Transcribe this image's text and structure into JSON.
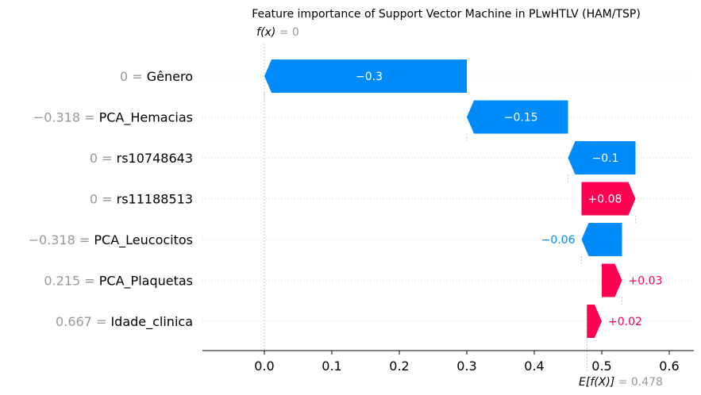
{
  "chart_data": {
    "type": "waterfall",
    "title": "Feature importance of Support Vector Machine in PLwHTLV (HAM/TSP)",
    "xlim": [
      -0.09,
      0.635
    ],
    "xticks": [
      "0.0",
      "0.1",
      "0.2",
      "0.3",
      "0.4",
      "0.5",
      "0.6"
    ],
    "xtick_values": [
      0.0,
      0.1,
      0.2,
      0.3,
      0.4,
      0.5,
      0.6
    ],
    "base_value": 0.478,
    "output_value": 0,
    "fx_label_math": "f(x)",
    "fx_label_value": " = 0",
    "ef_label_math": "E[f(X)]",
    "ef_label_value": " = 0.478",
    "colors": {
      "negative": "#008bfb",
      "positive": "#ff0051"
    },
    "features": [
      {
        "value_text": "0 = ",
        "name": "Gênero",
        "start": 0.3,
        "end": 0.0,
        "label": "−0.3"
      },
      {
        "value_text": "−0.318 = ",
        "name": "PCA_Hemacias",
        "start": 0.45,
        "end": 0.3,
        "label": "−0.15"
      },
      {
        "value_text": "0 = ",
        "name": "rs10748643",
        "start": 0.55,
        "end": 0.45,
        "label": "−0.1"
      },
      {
        "value_text": "0 = ",
        "name": "rs11188513",
        "start": 0.47,
        "end": 0.55,
        "label": "+0.08"
      },
      {
        "value_text": "−0.318 = ",
        "name": "PCA_Leucocitos",
        "start": 0.53,
        "end": 0.47,
        "label": "−0.06"
      },
      {
        "value_text": "0.215 = ",
        "name": "PCA_Plaquetas",
        "start": 0.5,
        "end": 0.53,
        "label": "+0.03"
      },
      {
        "value_text": "0.667 = ",
        "name": "Idade_clinica",
        "start": 0.478,
        "end": 0.5,
        "label": "+0.02"
      }
    ]
  }
}
